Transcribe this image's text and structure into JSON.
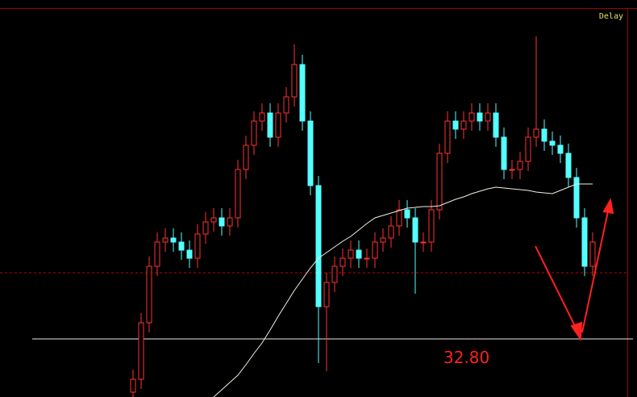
{
  "chart_data": {
    "type": "candlestick",
    "status": "Delay",
    "ylim": [
      29.2,
      53.8
    ],
    "up_color": "#ff3232",
    "down_color": "#54ffff",
    "open": [
      29.5,
      30.3,
      33.8,
      37.3,
      38.8,
      39.05,
      38.8,
      38.3,
      37.8,
      39.3,
      40.05,
      40.3,
      39.8,
      40.3,
      43.3,
      44.8,
      46.3,
      46.8,
      45.3,
      46.8,
      47.8,
      49.8,
      46.3,
      42.3,
      34.8,
      36.3,
      37.3,
      37.8,
      38.3,
      37.8,
      37.8,
      38.8,
      39.05,
      39.8,
      40.8,
      40.3,
      38.8,
      38.8,
      40.8,
      44.3,
      46.3,
      45.8,
      46.3,
      46.8,
      46.3,
      46.8,
      45.3,
      43.3,
      43.3,
      43.8,
      45.3,
      45.8,
      45.05,
      44.8,
      44.3,
      42.8,
      40.3,
      37.3
    ],
    "high": [
      30.9,
      34.4,
      37.9,
      39.4,
      39.65,
      39.65,
      39.4,
      38.9,
      39.9,
      40.65,
      40.9,
      40.9,
      40.9,
      43.9,
      45.4,
      46.9,
      47.4,
      47.4,
      47.4,
      48.4,
      51.05,
      50.4,
      46.9,
      42.9,
      36.9,
      37.9,
      38.4,
      38.9,
      38.9,
      38.4,
      39.4,
      39.65,
      40.4,
      41.4,
      41.4,
      40.9,
      39.4,
      41.4,
      44.9,
      46.9,
      46.9,
      46.9,
      47.4,
      47.4,
      47.4,
      47.4,
      45.9,
      43.9,
      44.4,
      45.9,
      51.55,
      46.4,
      45.65,
      45.4,
      44.9,
      43.4,
      40.9,
      39.4
    ],
    "low": [
      28.9,
      29.7,
      33.2,
      36.7,
      38.2,
      38.2,
      37.7,
      37.2,
      37.2,
      38.7,
      39.45,
      39.2,
      39.2,
      39.7,
      42.7,
      44.2,
      45.7,
      44.7,
      44.7,
      46.2,
      47.2,
      45.7,
      41.7,
      31.3,
      30.8,
      35.7,
      36.7,
      37.2,
      37.2,
      37.2,
      37.2,
      38.2,
      38.45,
      39.2,
      39.7,
      35.6,
      38.2,
      38.2,
      40.2,
      43.7,
      45.2,
      45.2,
      45.7,
      45.7,
      45.7,
      44.7,
      42.7,
      42.7,
      42.7,
      43.2,
      44.7,
      44.45,
      44.2,
      43.7,
      42.2,
      39.7,
      36.7,
      36.7
    ],
    "close": [
      30.3,
      33.8,
      37.3,
      38.8,
      39.05,
      38.8,
      38.3,
      37.8,
      39.3,
      40.05,
      40.3,
      39.8,
      40.3,
      43.3,
      44.8,
      46.3,
      46.8,
      45.3,
      46.8,
      47.8,
      49.8,
      46.3,
      42.3,
      34.8,
      36.3,
      37.3,
      37.8,
      38.3,
      37.8,
      37.8,
      38.8,
      39.05,
      39.8,
      40.8,
      40.3,
      38.8,
      38.8,
      40.8,
      44.3,
      46.3,
      45.8,
      46.3,
      46.8,
      46.3,
      46.8,
      45.3,
      43.3,
      43.3,
      43.8,
      45.3,
      45.8,
      45.05,
      44.8,
      44.3,
      42.8,
      40.3,
      37.3,
      38.8
    ],
    "ma": {
      "color": "#f0f0e0",
      "values": [
        null,
        null,
        null,
        null,
        null,
        null,
        null,
        null,
        null,
        null,
        29.2,
        29.65,
        30.1,
        30.55,
        31.2,
        31.9,
        32.55,
        33.35,
        34.2,
        35.0,
        35.8,
        36.5,
        37.2,
        37.8,
        38.15,
        38.5,
        38.85,
        39.15,
        39.55,
        39.95,
        40.3,
        40.45,
        40.6,
        40.75,
        40.9,
        40.95,
        41.0,
        41.0,
        41.05,
        41.25,
        41.45,
        41.6,
        41.8,
        41.95,
        42.1,
        42.2,
        42.15,
        42.1,
        42.05,
        42.0,
        41.9,
        41.85,
        41.8,
        42.0,
        42.2,
        42.4,
        42.4,
        42.4
      ]
    },
    "support": {
      "value": 32.8,
      "label": "32.80",
      "color": "#ff2020"
    },
    "reference_line": 36.9
  }
}
